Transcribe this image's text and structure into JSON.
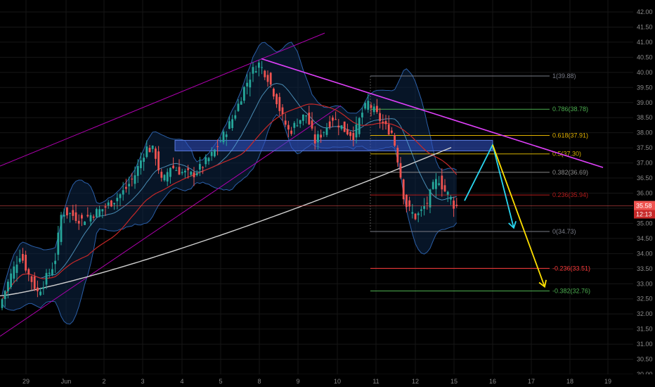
{
  "chart_data": {
    "type": "candlestick",
    "symbol": "",
    "x_ticks": [
      "29",
      "Jun",
      "2",
      "3",
      "4",
      "5",
      "8",
      "9",
      "10",
      "11",
      "12",
      "15",
      "16",
      "17",
      "18",
      "19"
    ],
    "y_ticks": [
      "42.00",
      "41.50",
      "41.00",
      "40.50",
      "40.00",
      "39.50",
      "39.00",
      "38.50",
      "38.00",
      "37.50",
      "37.00",
      "36.50",
      "36.00",
      "35.50",
      "35.00",
      "34.50",
      "34.00",
      "33.50",
      "33.00",
      "32.50",
      "32.00",
      "31.50",
      "31.00",
      "30.50",
      "30.00"
    ],
    "ylim": [
      29.8,
      42.3
    ],
    "current_price": "35.58",
    "countdown": "12:13",
    "fib_levels": [
      {
        "label": "1(39.88)",
        "value": 39.88,
        "color": "#787b86"
      },
      {
        "label": "0.786(38.78)",
        "value": 38.78,
        "color": "#4caf50"
      },
      {
        "label": "0.618(37.91)",
        "value": 37.91,
        "color": "#e0b000"
      },
      {
        "label": "0.5(37.30)",
        "value": 37.3,
        "color": "#d4b000"
      },
      {
        "label": "0.382(36.69)",
        "value": 36.69,
        "color": "#8a8a8a"
      },
      {
        "label": "0.236(35.94)",
        "value": 35.94,
        "color": "#b71c1c"
      },
      {
        "label": "0(34.73)",
        "value": 34.73,
        "color": "#787b86"
      },
      {
        "label": "-0.236(33.51)",
        "value": 33.51,
        "color": "#ff3b3b"
      },
      {
        "label": "-0.382(32.76)",
        "value": 32.76,
        "color": "#4caf50"
      }
    ],
    "colors": {
      "up": "#26a69a",
      "down": "#ef5350",
      "channel": "#b000b0",
      "trendline": "#e040fb",
      "zone": "#3050c0",
      "ma_long": "#d0d0d0",
      "ma_mid": "#c62828",
      "bb_band": "#2b5fa8",
      "arrow_cyan": "#29d6f0",
      "arrow_yellow": "#ffe000",
      "price_line": "#ef5350",
      "grid": "#161616"
    },
    "grid": true,
    "legend": "none"
  }
}
